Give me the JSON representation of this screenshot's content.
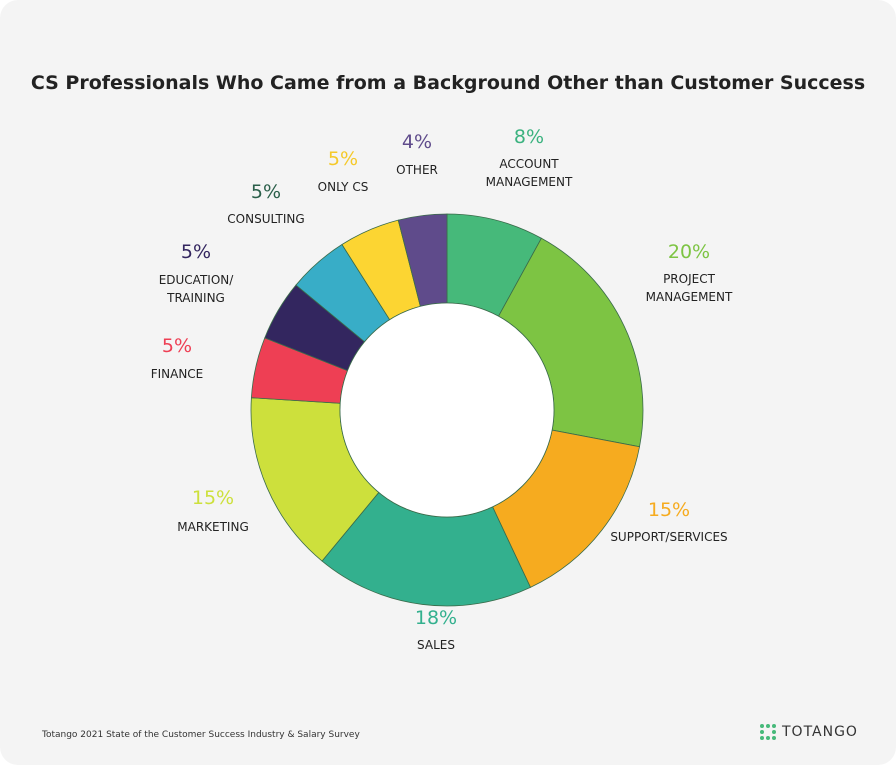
{
  "chart_data": {
    "type": "donut",
    "title": "CS Professionals Who Came from a Background Other than Customer Success",
    "categories": [
      "ACCOUNT MANAGEMENT",
      "PROJECT MANAGEMENT",
      "SUPPORT/SERVICES",
      "SALES",
      "MARKETING",
      "FINANCE",
      "EDUCATION/ TRAINING",
      "CONSULTING",
      "ONLY CS",
      "OTHER"
    ],
    "values": [
      8,
      20,
      15,
      18,
      15,
      5,
      5,
      5,
      5,
      4
    ],
    "value_labels": [
      "8%",
      "20%",
      "15%",
      "18%",
      "15%",
      "5%",
      "5%",
      "5%",
      "5%",
      "4%"
    ],
    "colors": [
      "#46b97a",
      "#7dc443",
      "#f6ab1f",
      "#33b08e",
      "#cde03c",
      "#ee3f54",
      "#33265f",
      "#38adc7",
      "#fcd532",
      "#5f4b8b"
    ]
  },
  "footer": {
    "source": "Totango 2021 State of the Customer Success Industry & Salary Survey",
    "brand": "TOTANGO"
  }
}
